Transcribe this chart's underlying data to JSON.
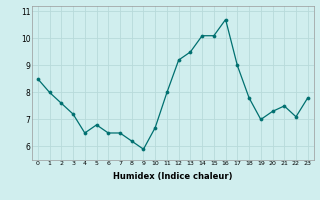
{
  "x": [
    0,
    1,
    2,
    3,
    4,
    5,
    6,
    7,
    8,
    9,
    10,
    11,
    12,
    13,
    14,
    15,
    16,
    17,
    18,
    19,
    20,
    21,
    22,
    23
  ],
  "y": [
    8.5,
    8.0,
    7.6,
    7.2,
    6.5,
    6.8,
    6.5,
    6.5,
    6.2,
    5.9,
    6.7,
    8.0,
    9.2,
    9.5,
    10.1,
    10.1,
    10.7,
    9.0,
    7.8,
    7.0,
    7.3,
    7.5,
    7.1,
    7.8
  ],
  "line_color": "#007070",
  "marker_color": "#007070",
  "bg_color": "#d0eeee",
  "grid_color": "#b8dada",
  "xlabel": "Humidex (Indice chaleur)",
  "ylim": [
    5.5,
    11.2
  ],
  "xlim": [
    -0.5,
    23.5
  ],
  "yticks": [
    6,
    7,
    8,
    9,
    10,
    11
  ],
  "xticks": [
    0,
    1,
    2,
    3,
    4,
    5,
    6,
    7,
    8,
    9,
    10,
    11,
    12,
    13,
    14,
    15,
    16,
    17,
    18,
    19,
    20,
    21,
    22,
    23
  ],
  "xlabel_fontsize": 6.0,
  "xlabel_fontweight": "bold",
  "xtick_fontsize": 4.5,
  "ytick_fontsize": 5.5,
  "linewidth": 0.9,
  "markersize": 2.2
}
